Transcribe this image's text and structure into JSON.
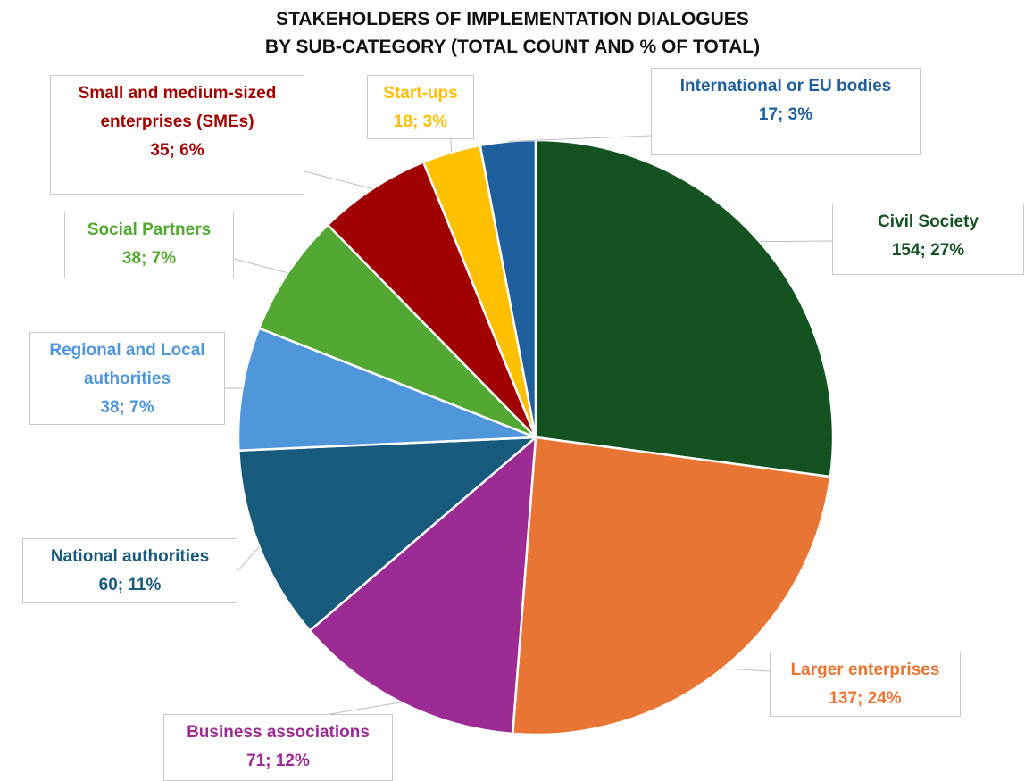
{
  "chart_data": {
    "type": "pie",
    "title": [
      "STAKEHOLDERS OF IMPLEMENTATION DIALOGUES",
      "BY SUB-CATEGORY (TOTAL COUNT AND % OF TOTAL)"
    ],
    "categories": [
      "Civil Society",
      "Larger enterprises",
      "Business associations",
      "National authorities",
      "Regional and Local authorities",
      "Social Partners",
      "Small and medium-sized enterprises (SMEs)",
      "Start-ups",
      "International or EU bodies"
    ],
    "values": [
      154,
      137,
      71,
      60,
      38,
      38,
      35,
      18,
      17
    ],
    "value_labels": [
      "154; 27%",
      "137; 24%",
      "71; 12%",
      "60; 11%",
      "38; 7%",
      "38; 7%",
      "35; 6%",
      "18; 3%",
      "17; 3%"
    ],
    "colors": [
      "#145221",
      "#e87533",
      "#9c2b93",
      "#185b7c",
      "#4f96db",
      "#52a832",
      "#a00000",
      "#ffc000",
      "#1f5f9e"
    ]
  }
}
